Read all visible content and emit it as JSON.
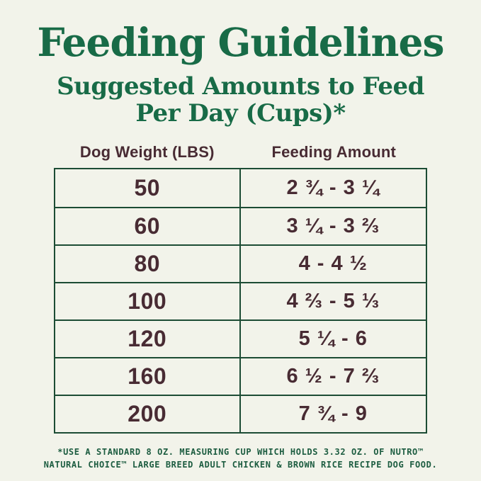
{
  "title": "Feeding Guidelines",
  "subtitle": {
    "line1": "Suggested Amounts to Feed",
    "line2": "Per Day (Cups)*"
  },
  "colors": {
    "background": "#f2f3ea",
    "heading_green": "#186b47",
    "table_text_brown": "#482b33",
    "table_border_green": "#1c4c34",
    "footnote_green": "#1c5c40"
  },
  "chart_data": {
    "type": "table",
    "title": "Feeding Guidelines",
    "subtitle": "Suggested Amounts to Feed Per Day (Cups)*",
    "columns": [
      "Dog Weight (LBS)",
      "Feeding Amount"
    ],
    "rows": [
      [
        "50",
        "2 ¾ - 3 ¼"
      ],
      [
        "60",
        "3 ¼ - 3 ⅔"
      ],
      [
        "80",
        "4 - 4 ½"
      ],
      [
        "100",
        "4 ⅔ - 5 ⅓"
      ],
      [
        "120",
        "5 ¼ - 6"
      ],
      [
        "160",
        "6 ½ - 7 ⅔"
      ],
      [
        "200",
        "7 ¾ - 9"
      ]
    ],
    "weights_lbs": [
      50,
      60,
      80,
      100,
      120,
      160,
      200
    ],
    "feeding_amount_cups_min_max": [
      [
        2.75,
        3.25
      ],
      [
        3.25,
        3.67
      ],
      [
        4,
        4.5
      ],
      [
        4.67,
        5.33
      ],
      [
        5.25,
        6
      ],
      [
        6.5,
        7.67
      ],
      [
        7.75,
        9
      ]
    ],
    "grid": true,
    "legend": false
  },
  "footnote": {
    "line1": "*USE A STANDARD 8 OZ. MEASURING CUP WHICH HOLDS 3.32 OZ. OF NUTRO™",
    "line2": "NATURAL CHOICE™ LARGE BREED ADULT CHICKEN & BROWN RICE RECIPE DOG FOOD."
  }
}
